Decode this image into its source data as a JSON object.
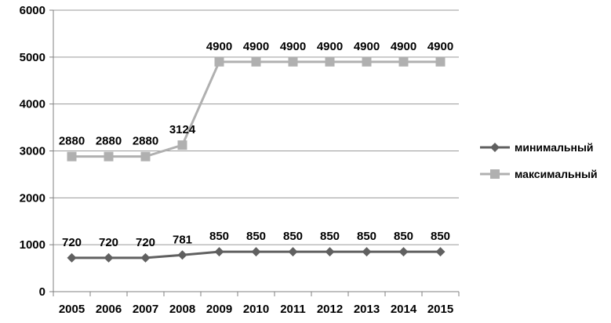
{
  "chart_data": {
    "type": "line",
    "title": "",
    "xlabel": "",
    "ylabel": "",
    "categories": [
      "2005",
      "2006",
      "2007",
      "2008",
      "2009",
      "2010",
      "2011",
      "2012",
      "2013",
      "2014",
      "2015"
    ],
    "ylim": [
      0,
      6000
    ],
    "yticks": [
      0,
      1000,
      2000,
      3000,
      4000,
      5000,
      6000
    ],
    "grid": true,
    "legend_position": "right",
    "series": [
      {
        "name": "минимальный",
        "values": [
          720,
          720,
          720,
          781,
          850,
          850,
          850,
          850,
          850,
          850,
          850
        ],
        "color": "#606060",
        "marker": "diamond"
      },
      {
        "name": "максимальный",
        "values": [
          2880,
          2880,
          2880,
          3124,
          4900,
          4900,
          4900,
          4900,
          4900,
          4900,
          4900
        ],
        "color": "#b0b0b0",
        "marker": "square"
      }
    ]
  }
}
